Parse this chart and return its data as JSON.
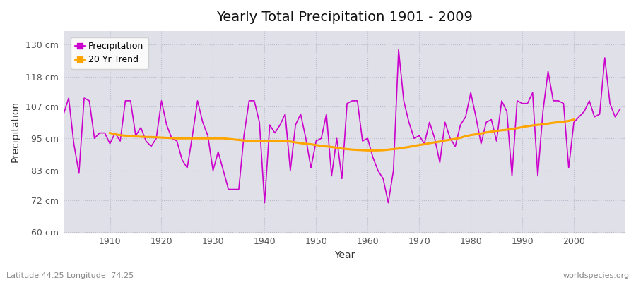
{
  "title": "Yearly Total Precipitation 1901 - 2009",
  "xlabel": "Year",
  "ylabel": "Precipitation",
  "subtitle_left": "Latitude 44.25 Longitude -74.25",
  "subtitle_right": "worldspecies.org",
  "precip_color": "#cc00cc",
  "trend_color": "#FFA500",
  "bg_color": "#ffffff",
  "plot_bg_color": "#e0e0e8",
  "ylim": [
    60,
    135
  ],
  "xlim": [
    1901,
    2010
  ],
  "yticks": [
    60,
    72,
    83,
    95,
    107,
    118,
    130
  ],
  "ytick_labels": [
    "60 cm",
    "72 cm",
    "83 cm",
    "95 cm",
    "107 cm",
    "118 cm",
    "130 cm"
  ],
  "xticks": [
    1910,
    1920,
    1930,
    1940,
    1950,
    1960,
    1970,
    1980,
    1990,
    2000
  ],
  "years": [
    1901,
    1902,
    1903,
    1904,
    1905,
    1906,
    1907,
    1908,
    1909,
    1910,
    1911,
    1912,
    1913,
    1914,
    1915,
    1916,
    1917,
    1918,
    1919,
    1920,
    1921,
    1922,
    1923,
    1924,
    1925,
    1926,
    1927,
    1928,
    1929,
    1930,
    1931,
    1932,
    1933,
    1934,
    1935,
    1936,
    1937,
    1938,
    1939,
    1940,
    1941,
    1942,
    1943,
    1944,
    1945,
    1946,
    1947,
    1948,
    1949,
    1950,
    1951,
    1952,
    1953,
    1954,
    1955,
    1956,
    1957,
    1958,
    1959,
    1960,
    1961,
    1962,
    1963,
    1964,
    1965,
    1966,
    1967,
    1968,
    1969,
    1970,
    1971,
    1972,
    1973,
    1974,
    1975,
    1976,
    1977,
    1978,
    1979,
    1980,
    1981,
    1982,
    1983,
    1984,
    1985,
    1986,
    1987,
    1988,
    1989,
    1990,
    1991,
    1992,
    1993,
    1994,
    1995,
    1996,
    1997,
    1998,
    1999,
    2000,
    2001,
    2002,
    2003,
    2004,
    2005,
    2006,
    2007,
    2008,
    2009
  ],
  "precip": [
    104,
    110,
    93,
    82,
    110,
    109,
    95,
    97,
    97,
    93,
    97,
    94,
    109,
    109,
    96,
    99,
    94,
    92,
    95,
    109,
    100,
    95,
    94,
    87,
    84,
    96,
    109,
    101,
    96,
    83,
    90,
    83,
    76,
    76,
    76,
    96,
    109,
    109,
    101,
    71,
    100,
    97,
    100,
    104,
    83,
    100,
    104,
    95,
    84,
    94,
    95,
    104,
    81,
    95,
    80,
    108,
    109,
    109,
    94,
    95,
    88,
    83,
    80,
    71,
    83,
    128,
    109,
    101,
    95,
    96,
    93,
    101,
    95,
    86,
    101,
    95,
    92,
    100,
    103,
    112,
    103,
    93,
    101,
    102,
    94,
    109,
    105,
    81,
    109,
    108,
    108,
    112,
    81,
    105,
    120,
    109,
    109,
    108,
    84,
    101,
    103,
    105,
    109,
    103,
    104,
    125,
    108,
    103,
    106
  ],
  "trend": [
    null,
    null,
    null,
    null,
    null,
    null,
    null,
    null,
    null,
    97.0,
    96.5,
    96.2,
    96.0,
    95.8,
    95.7,
    95.6,
    95.5,
    95.5,
    95.4,
    95.3,
    95.2,
    95.1,
    95.0,
    95.0,
    95.0,
    95.0,
    95.0,
    95.0,
    95.0,
    95.0,
    95.0,
    95.0,
    94.8,
    94.6,
    94.4,
    94.2,
    94.0,
    94.0,
    94.0,
    94.0,
    94.0,
    94.0,
    94.0,
    94.0,
    93.8,
    93.5,
    93.2,
    93.0,
    92.8,
    92.5,
    92.2,
    92.0,
    91.8,
    91.5,
    91.2,
    91.0,
    90.8,
    90.7,
    90.6,
    90.5,
    90.5,
    90.5,
    90.6,
    90.8,
    91.0,
    91.2,
    91.5,
    91.8,
    92.2,
    92.5,
    92.8,
    93.2,
    93.5,
    93.8,
    94.2,
    94.5,
    94.8,
    95.2,
    95.8,
    96.2,
    96.5,
    96.8,
    97.2,
    97.5,
    97.8,
    98.0,
    98.2,
    98.5,
    98.8,
    99.2,
    99.5,
    99.8,
    100.0,
    100.2,
    100.5,
    100.8,
    101.0,
    101.2,
    101.5,
    102.0,
    null,
    null,
    null,
    null,
    null,
    null,
    null,
    null,
    null
  ]
}
